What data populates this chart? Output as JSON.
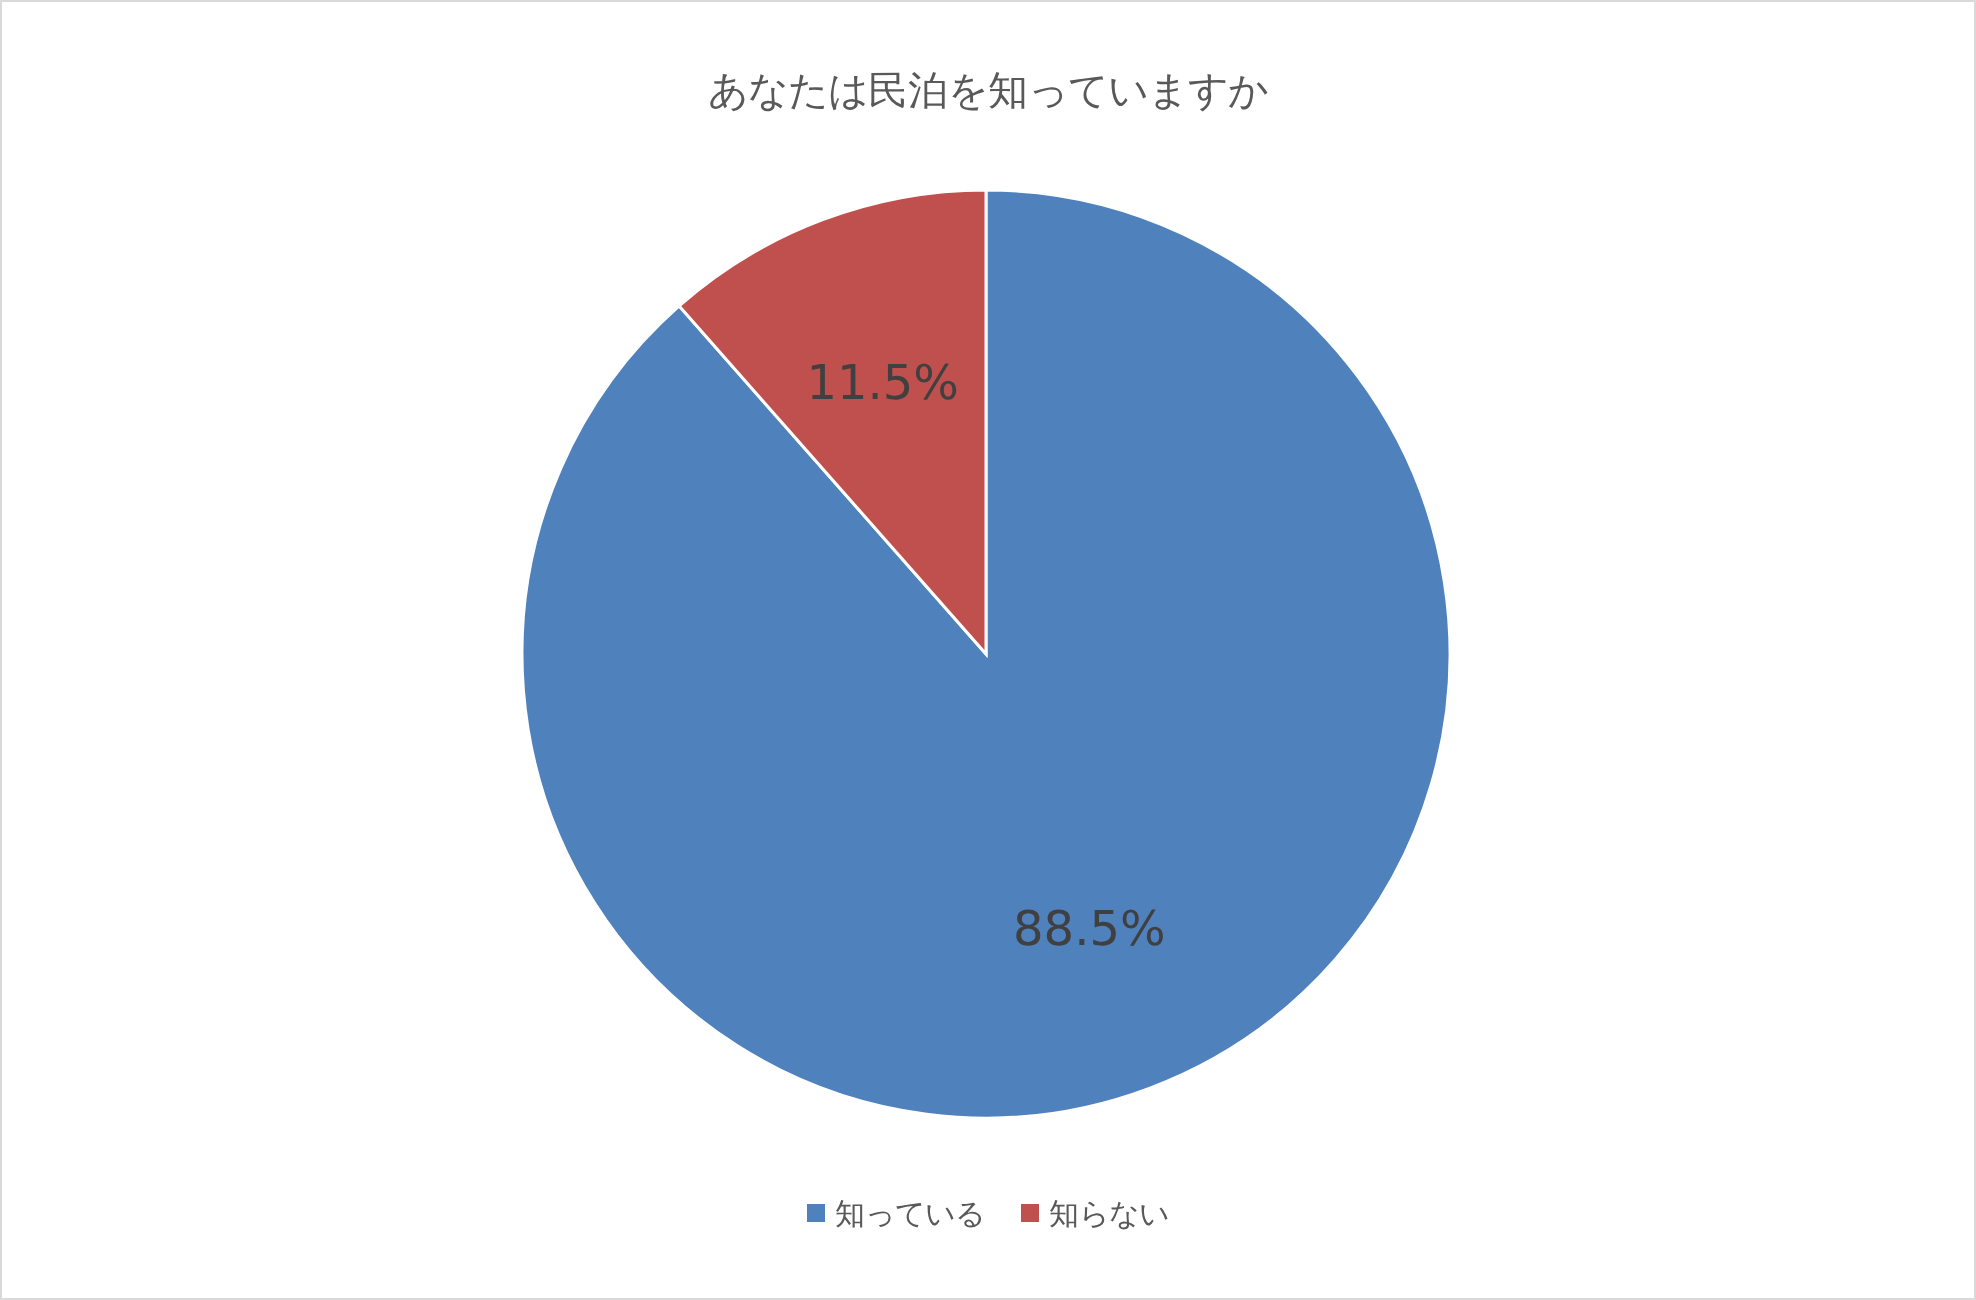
{
  "chart_data": {
    "type": "pie",
    "title": "あなたは民泊を知っていますか",
    "categories": [
      "知っている",
      "知らない"
    ],
    "values": [
      88.5,
      11.5
    ],
    "colors": [
      "#4f81bd",
      "#c0504d"
    ],
    "value_labels": [
      "88.5%",
      "11.5%"
    ],
    "legend": "bottom"
  }
}
